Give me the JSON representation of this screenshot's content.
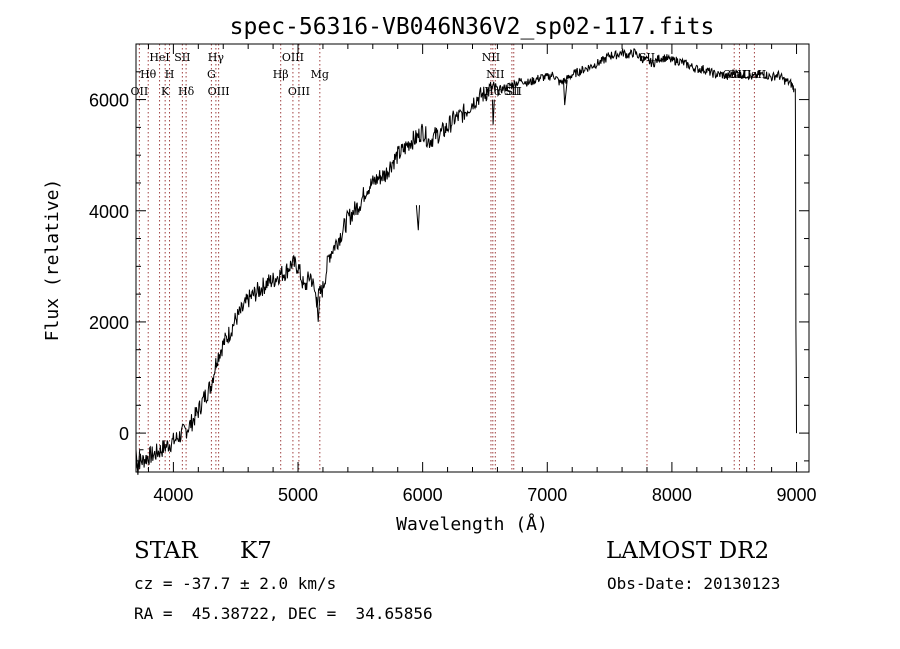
{
  "chart_data": {
    "type": "line",
    "title": "spec-56316-VB046N36V2_sp02-117.fits",
    "xlabel": "Wavelength (Å)",
    "ylabel": "Flux (relative)",
    "xlim": [
      3700,
      9100
    ],
    "ylim": [
      -700,
      7000
    ],
    "xticks": [
      4000,
      5000,
      6000,
      7000,
      8000,
      9000
    ],
    "xtick_labels": [
      "4000",
      "5000",
      "6000",
      "7000",
      "8000",
      "9000"
    ],
    "yticks": [
      0,
      2000,
      4000,
      6000
    ],
    "ytick_labels": [
      "0",
      "2000",
      "4000",
      "6000"
    ],
    "grid": false,
    "series": [
      {
        "name": "flux",
        "color": "#000000",
        "x": [
          3700,
          3750,
          3800,
          3850,
          3900,
          3950,
          4000,
          4050,
          4100,
          4150,
          4200,
          4250,
          4300,
          4350,
          4400,
          4450,
          4500,
          4550,
          4600,
          4650,
          4700,
          4750,
          4800,
          4850,
          4900,
          4950,
          5000,
          5050,
          5100,
          5150,
          5200,
          5250,
          5300,
          5350,
          5400,
          5450,
          5500,
          5550,
          5600,
          5650,
          5700,
          5750,
          5800,
          5850,
          5900,
          5950,
          6000,
          6050,
          6100,
          6150,
          6200,
          6250,
          6300,
          6350,
          6400,
          6450,
          6500,
          6550,
          6600,
          6650,
          6700,
          6750,
          6800,
          6850,
          6900,
          6950,
          7000,
          7050,
          7100,
          7150,
          7200,
          7250,
          7300,
          7350,
          7400,
          7450,
          7500,
          7550,
          7600,
          7650,
          7700,
          7750,
          7800,
          7850,
          7900,
          7950,
          8000,
          8050,
          8100,
          8150,
          8200,
          8250,
          8300,
          8350,
          8400,
          8450,
          8500,
          8550,
          8600,
          8650,
          8700,
          8750,
          8800,
          8850,
          8900,
          8950,
          8980
        ],
        "y": [
          -500,
          -500,
          -420,
          -380,
          -300,
          -220,
          -150,
          -50,
          50,
          200,
          400,
          650,
          850,
          1350,
          1600,
          1800,
          2050,
          2200,
          2400,
          2500,
          2600,
          2700,
          2750,
          2850,
          2900,
          3050,
          3000,
          2600,
          2850,
          2400,
          2600,
          3200,
          3400,
          3600,
          3850,
          4000,
          4150,
          4400,
          4500,
          4600,
          4650,
          4850,
          5000,
          5100,
          5250,
          5300,
          5450,
          5250,
          5350,
          5400,
          5500,
          5650,
          5700,
          5800,
          5950,
          6050,
          6100,
          6200,
          6150,
          6200,
          6250,
          6300,
          6350,
          6300,
          6350,
          6400,
          6400,
          6450,
          6300,
          6350,
          6450,
          6500,
          6550,
          6600,
          6650,
          6700,
          6800,
          6800,
          6850,
          6800,
          6850,
          6750,
          6700,
          6650,
          6750,
          6750,
          6700,
          6700,
          6650,
          6600,
          6550,
          6550,
          6500,
          6450,
          6450,
          6400,
          6500,
          6450,
          6450,
          6400,
          6450,
          6450,
          6400,
          6450,
          6350,
          6300,
          6200
        ]
      }
    ],
    "features": [
      {
        "y": -750,
        "x": [
          3700,
          3715,
          3730,
          3760
        ]
      },
      {
        "y": 3650,
        "x": [
          5950,
          5965,
          5975
        ]
      },
      {
        "y": 2000,
        "x": [
          5150,
          5162,
          5175
        ]
      },
      {
        "y": 5550,
        "x": [
          6560,
          6565,
          6575
        ]
      },
      {
        "y": 5900,
        "x": [
          7130,
          7140,
          7160
        ]
      }
    ],
    "edge": {
      "x": [
        8990,
        8992,
        8995,
        8997,
        9000
      ],
      "y": [
        6200,
        5400,
        1900,
        1200,
        0
      ]
    },
    "lines": [
      {
        "name": "OII",
        "x": 3727,
        "row": 3
      },
      {
        "name": "Hθ",
        "x": 3798,
        "row": 2
      },
      {
        "name": "HeI",
        "x": 3889,
        "row": 1
      },
      {
        "name": "K",
        "x": 3934,
        "row": 3
      },
      {
        "name": "H",
        "x": 3969,
        "row": 2
      },
      {
        "name": "SII",
        "x": 4072,
        "row": 1
      },
      {
        "name": "Hδ",
        "x": 4102,
        "row": 3
      },
      {
        "name": "G",
        "x": 4305,
        "row": 2
      },
      {
        "name": "Hγ",
        "x": 4341,
        "row": 1
      },
      {
        "name": "OIII",
        "x": 4363,
        "row": 3
      },
      {
        "name": "Hβ",
        "x": 4861,
        "row": 2
      },
      {
        "name": "OIII",
        "x": 4959,
        "row": 1
      },
      {
        "name": "OIII",
        "x": 5007,
        "row": 3
      },
      {
        "name": "Mg",
        "x": 5175,
        "row": 2
      },
      {
        "name": "NII",
        "x": 6548,
        "row": 1
      },
      {
        "name": "Hα",
        "x": 6563,
        "row": 3
      },
      {
        "name": "NII",
        "x": 6583,
        "row": 2
      },
      {
        "name": "SII",
        "x": 6716,
        "row": 3
      },
      {
        "name": "SII",
        "x": 6731,
        "row": 3
      },
      {
        "name": "SII",
        "x": 7800,
        "row": 1
      },
      {
        "name": "CaII",
        "x": 8500,
        "row": 2
      },
      {
        "name": "CaII",
        "x": 8542,
        "row": 2
      },
      {
        "name": "CaII",
        "x": 8662,
        "row": 2
      }
    ]
  },
  "info": {
    "object_class": "STAR",
    "subclass": "K7",
    "survey": "LAMOST DR2",
    "redshift": "cz = -37.7 ± 2.0 km/s",
    "obs_date": "Obs-Date: 20130123",
    "coords": "RA =  45.38722, DEC =  34.65856"
  }
}
